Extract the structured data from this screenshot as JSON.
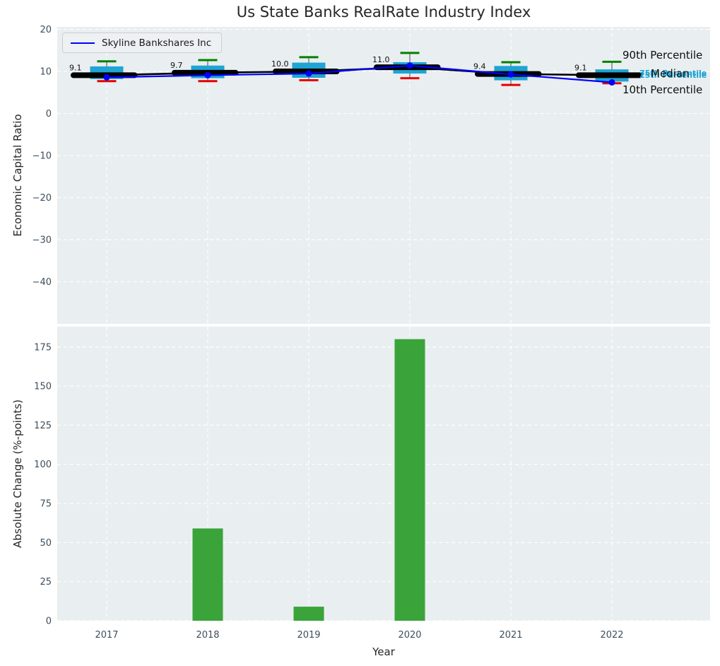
{
  "title": "Us State Banks RealRate Industry Index",
  "legend": {
    "label": "Skyline Bankshares Inc",
    "line_color": "#0000ff",
    "position": "upper left"
  },
  "annotations": {
    "p90": "90th Percentile",
    "p75": "75th Percentile",
    "median": "Median",
    "p25": "25th Percentile",
    "p10": "10th Percentile"
  },
  "colors": {
    "plot_bg": "#e9eef0",
    "grid": "#ffffff",
    "box_fill": "#1fa4d4",
    "whisker": "#7a7a7a",
    "cap_top": "#008000",
    "cap_bottom": "#e60000",
    "median_line": "#000000",
    "company_line": "#0000ff",
    "bar": "#3aa33a",
    "tick_label": "#3d4e5c",
    "axis_label": "#262626",
    "annotation_cyan": "#1ba4d4"
  },
  "chart_data": [
    {
      "type": "boxplot",
      "title": "Us State Banks RealRate Industry Index",
      "ylabel": "Economic Capital Ratio",
      "categories": [
        "2017",
        "2018",
        "2019",
        "2020",
        "2021",
        "2022"
      ],
      "yticks": [
        20,
        10,
        0,
        -10,
        -20,
        -30,
        -40
      ],
      "ylim": [
        -50,
        20.6
      ],
      "grid": true,
      "legend_position": "upper left",
      "series": [
        {
          "name": "90th Percentile",
          "values": [
            12.4,
            12.7,
            13.4,
            14.4,
            12.2,
            12.3
          ]
        },
        {
          "name": "75th Percentile",
          "values": [
            11.2,
            11.4,
            12.1,
            12.2,
            11.3,
            10.5
          ]
        },
        {
          "name": "Median",
          "values": [
            9.1,
            9.7,
            10.0,
            11.0,
            9.4,
            9.1
          ]
        },
        {
          "name": "25th Percentile",
          "values": [
            8.2,
            8.4,
            8.5,
            9.5,
            7.9,
            7.6
          ]
        },
        {
          "name": "10th Percentile",
          "values": [
            7.7,
            7.7,
            7.9,
            8.4,
            6.8,
            7.2
          ]
        },
        {
          "name": "Skyline Bankshares Inc",
          "values": [
            8.6,
            9.1,
            9.5,
            11.4,
            9.3,
            7.4
          ]
        }
      ],
      "median_labels": [
        "9.1",
        "9.7",
        "10.0",
        "11.0",
        "9.4",
        "9.1"
      ]
    },
    {
      "type": "bar",
      "ylabel": "Absolute Change (%-points)",
      "xlabel": "Year",
      "categories": [
        "2017",
        "2018",
        "2019",
        "2020",
        "2021",
        "2022"
      ],
      "values": [
        0,
        59,
        9,
        180,
        0,
        0
      ],
      "yticks": [
        0,
        25,
        50,
        75,
        100,
        125,
        150,
        175
      ],
      "ylim": [
        0,
        188
      ],
      "grid": true
    }
  ]
}
